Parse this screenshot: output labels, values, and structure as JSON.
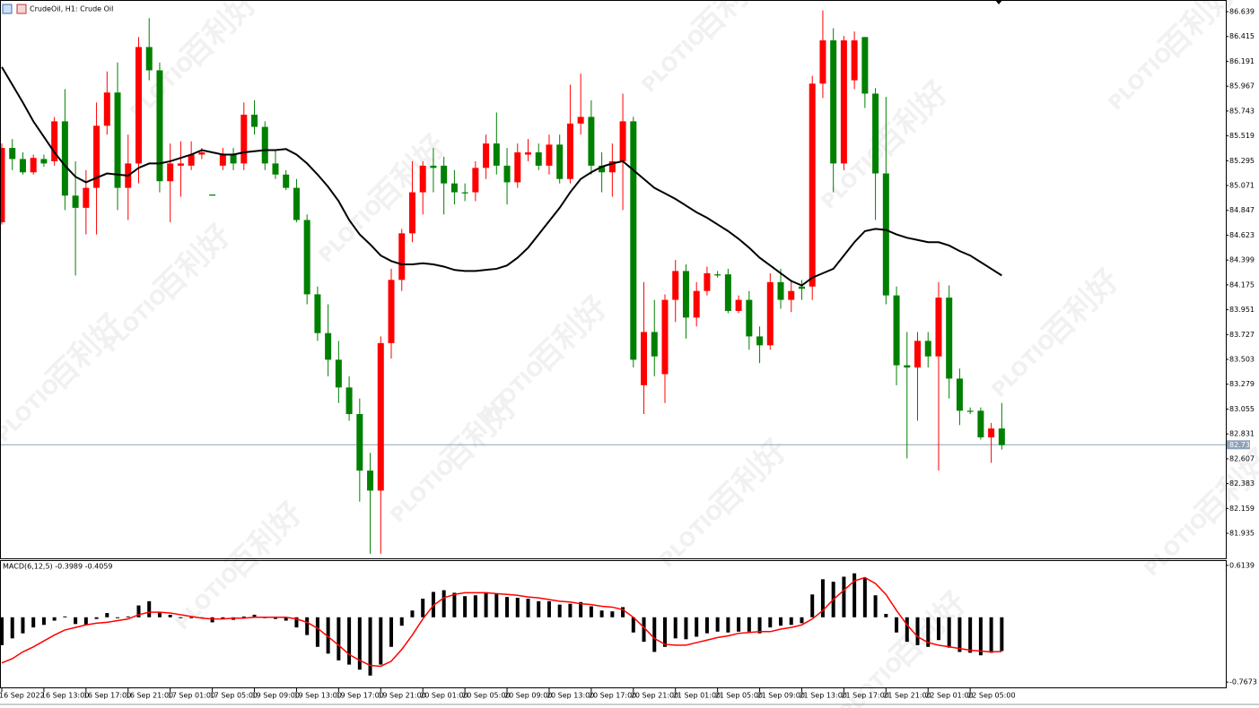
{
  "chart_data": [
    {
      "type": "candlestick",
      "title": "CrudeOil, H1:  Crude Oil",
      "categories": [
        "16 Sep 2022",
        null,
        null,
        null,
        "16 Sep 13:00",
        null,
        null,
        null,
        "16 Sep 17:00",
        null,
        null,
        null,
        "16 Sep 21:00",
        null,
        null,
        null,
        "17 Sep 01:00",
        null,
        null,
        null,
        "17 Sep 05:00",
        null,
        null,
        null,
        "19 Sep 09:00",
        null,
        null,
        null,
        "19 Sep 13:00",
        null,
        null,
        null,
        "19 Sep 17:00",
        null,
        null,
        null,
        "19 Sep 21:00",
        null,
        null,
        null,
        "20 Sep 01:00",
        null,
        null,
        null,
        "20 Sep 05:00",
        null,
        null,
        null,
        "20 Sep 09:00",
        null,
        null,
        null,
        "20 Sep 13:00",
        null,
        null,
        null,
        "20 Sep 17:00",
        null,
        null,
        null,
        "20 Sep 21:00",
        null,
        null,
        null,
        "21 Sep 01:00",
        null,
        null,
        null,
        "21 Sep 05:00",
        null,
        null,
        null,
        "21 Sep 09:00",
        null,
        null,
        null,
        "21 Sep 13:00",
        null,
        null,
        null,
        "21 Sep 17:00",
        null,
        null,
        null,
        "21 Sep 21:00",
        null,
        null,
        null,
        "22 Sep 01:00",
        null,
        null,
        null,
        "22 Sep 05:00",
        null,
        null,
        null
      ],
      "open": [
        84.74,
        85.41,
        85.31,
        85.19,
        85.31,
        85.29,
        85.65,
        84.98,
        84.87,
        85.05,
        85.61,
        85.91,
        85.05,
        85.27,
        86.32,
        86.11,
        85.11,
        85.25,
        85.25,
        85.35,
        84.99,
        85.25,
        85.35,
        85.27,
        85.71,
        85.6,
        85.27,
        85.17,
        85.05,
        84.76,
        84.09,
        83.74,
        83.5,
        83.25,
        83.01,
        82.5,
        82.32,
        83.65,
        84.22,
        84.64,
        85.01,
        85.25,
        85.25,
        85.09,
        85.01,
        85.01,
        85.23,
        85.45,
        85.25,
        85.1,
        85.35,
        85.37,
        85.25,
        85.44,
        85.13,
        85.63,
        85.69,
        85.25,
        85.19,
        85.29,
        85.65,
        83.27,
        83.75,
        83.37,
        84.04,
        84.3,
        83.88,
        84.12,
        84.27,
        84.27,
        83.94,
        84.04,
        83.71,
        83.63,
        84.2,
        84.04,
        84.16,
        84.16,
        85.99,
        86.38,
        85.27,
        86.02,
        86.41,
        85.9,
        85.18,
        84.08,
        83.45,
        83.43,
        83.67,
        83.53,
        84.06,
        83.33,
        83.04,
        83.04,
        82.8,
        82.88
      ],
      "high": [
        85.45,
        85.49,
        85.37,
        85.35,
        85.35,
        85.69,
        85.94,
        85.29,
        85.21,
        85.82,
        86.1,
        86.18,
        85.53,
        86.41,
        86.58,
        86.18,
        85.45,
        85.47,
        85.47,
        85.41,
        84.99,
        85.41,
        85.41,
        85.82,
        85.84,
        85.65,
        85.39,
        85.21,
        85.13,
        84.81,
        84.16,
        84.0,
        83.67,
        83.35,
        83.15,
        82.66,
        83.71,
        84.32,
        84.68,
        85.29,
        85.29,
        85.41,
        85.33,
        85.21,
        85.09,
        85.29,
        85.53,
        85.73,
        85.41,
        85.45,
        85.49,
        85.45,
        85.53,
        85.53,
        85.98,
        86.08,
        85.84,
        85.37,
        85.45,
        85.9,
        85.69,
        84.2,
        84.04,
        84.09,
        84.4,
        84.36,
        84.2,
        84.34,
        84.3,
        84.32,
        84.08,
        84.12,
        83.8,
        84.28,
        84.32,
        84.22,
        84.22,
        86.06,
        86.65,
        86.49,
        86.42,
        86.46,
        86.41,
        85.95,
        85.87,
        84.16,
        83.75,
        83.75,
        83.75,
        84.2,
        84.17,
        83.42,
        83.07,
        83.07,
        82.93,
        83.11
      ],
      "low": [
        84.72,
        85.21,
        85.17,
        85.17,
        85.24,
        85.25,
        84.85,
        84.26,
        84.63,
        84.63,
        85.53,
        84.85,
        84.76,
        85.09,
        86.02,
        85.01,
        84.74,
        84.97,
        85.21,
        85.31,
        84.98,
        85.21,
        85.21,
        85.21,
        85.53,
        85.21,
        85.13,
        85.03,
        84.74,
        84.0,
        83.67,
        83.35,
        83.11,
        82.95,
        82.22,
        81.75,
        81.75,
        83.51,
        84.12,
        84.56,
        84.81,
        85.01,
        84.81,
        84.9,
        84.93,
        84.93,
        85.13,
        85.17,
        84.9,
        85.05,
        85.29,
        85.21,
        85.17,
        85.09,
        85.09,
        85.53,
        85.17,
        85.01,
        84.97,
        84.85,
        83.43,
        83.01,
        83.35,
        83.11,
        83.84,
        83.69,
        83.8,
        84.08,
        84.24,
        83.92,
        83.92,
        83.59,
        83.47,
        83.59,
        83.96,
        83.93,
        84.04,
        84.04,
        85.86,
        85.01,
        85.21,
        85.94,
        85.77,
        84.76,
        84.0,
        83.27,
        82.61,
        82.95,
        83.43,
        82.5,
        83.15,
        82.91,
        83.01,
        82.78,
        82.57,
        82.69
      ],
      "close": [
        85.41,
        85.31,
        85.19,
        85.32,
        85.27,
        85.65,
        84.98,
        84.87,
        85.05,
        85.61,
        85.91,
        85.05,
        85.27,
        86.32,
        86.11,
        85.11,
        85.27,
        85.27,
        85.35,
        85.37,
        84.98,
        85.35,
        85.27,
        85.71,
        85.6,
        85.27,
        85.17,
        85.05,
        84.76,
        84.09,
        83.74,
        83.5,
        83.25,
        83.01,
        82.5,
        82.32,
        83.65,
        84.22,
        84.64,
        85.01,
        85.25,
        85.23,
        85.09,
        85.01,
        85.0,
        85.23,
        85.45,
        85.25,
        85.1,
        85.37,
        85.37,
        85.25,
        85.44,
        85.13,
        85.63,
        85.69,
        85.25,
        85.19,
        85.29,
        85.65,
        83.5,
        83.75,
        83.53,
        84.04,
        84.3,
        83.88,
        84.12,
        84.28,
        84.26,
        83.94,
        84.04,
        83.71,
        83.63,
        84.2,
        84.04,
        84.12,
        84.14,
        85.99,
        86.38,
        85.27,
        86.38,
        86.38,
        85.9,
        85.18,
        84.08,
        83.45,
        83.43,
        83.67,
        83.53,
        84.06,
        83.33,
        83.04,
        83.03,
        82.8,
        82.88,
        82.73
      ],
      "up_color": "#ff0000",
      "down_color": "#008000",
      "lines": [
        {
          "color": "#000000",
          "values": [
            86.14,
            85.98,
            85.82,
            85.65,
            85.51,
            85.37,
            85.25,
            85.15,
            85.1,
            85.14,
            85.18,
            85.17,
            85.16,
            85.23,
            85.27,
            85.27,
            85.29,
            85.32,
            85.35,
            85.39,
            85.37,
            85.35,
            85.35,
            85.37,
            85.38,
            85.39,
            85.39,
            85.4,
            85.35,
            85.27,
            85.17,
            85.06,
            84.93,
            84.76,
            84.63,
            84.54,
            84.44,
            84.39,
            84.36,
            84.36,
            84.37,
            84.36,
            84.34,
            84.31,
            84.3,
            84.3,
            84.31,
            84.32,
            84.35,
            84.42,
            84.51,
            84.63,
            84.75,
            84.87,
            85.01,
            85.13,
            85.19,
            85.24,
            85.27,
            85.29,
            85.21,
            85.13,
            85.05,
            85.0,
            84.95,
            84.89,
            84.83,
            84.78,
            84.72,
            84.66,
            84.59,
            84.51,
            84.42,
            84.35,
            84.28,
            84.21,
            84.17,
            84.24,
            84.28,
            84.32,
            84.44,
            84.56,
            84.66,
            84.68,
            84.67,
            84.63,
            84.6,
            84.58,
            84.56,
            84.56,
            84.53,
            84.48,
            84.44,
            84.38,
            84.32,
            84.26
          ]
        }
      ],
      "ylim": [
        81.717,
        86.728
      ],
      "yticks": [
        86.639,
        86.415,
        86.191,
        85.967,
        85.743,
        85.519,
        85.295,
        85.071,
        84.847,
        84.623,
        84.399,
        84.175,
        83.951,
        83.727,
        83.503,
        83.279,
        83.055,
        82.831,
        82.607,
        82.383,
        82.159,
        81.935
      ],
      "price_line": 82.733,
      "price_line_color": "#8ea2b8",
      "watermark": {
        "text": "百利好",
        "logo": "PLOTIO"
      }
    },
    {
      "type": "macd",
      "title": "MACD(6,12,5) -0.3989 -0.4059",
      "histogram": {
        "color": "#000000",
        "values": [
          -0.33,
          -0.25,
          -0.19,
          -0.12,
          -0.09,
          -0.04,
          0.01,
          -0.08,
          -0.09,
          -0.02,
          0.05,
          -0.01,
          0.01,
          0.14,
          0.19,
          0.06,
          0.03,
          -0.01,
          -0.01,
          -0.01,
          -0.06,
          -0.02,
          -0.03,
          0.01,
          0.03,
          -0.01,
          -0.02,
          -0.04,
          -0.12,
          -0.21,
          -0.35,
          -0.43,
          -0.51,
          -0.56,
          -0.62,
          -0.69,
          -0.56,
          -0.35,
          -0.1,
          0.08,
          0.22,
          0.3,
          0.32,
          0.29,
          0.25,
          0.26,
          0.29,
          0.28,
          0.24,
          0.23,
          0.22,
          0.19,
          0.19,
          0.15,
          0.16,
          0.18,
          0.13,
          0.08,
          0.07,
          0.12,
          -0.18,
          -0.29,
          -0.41,
          -0.35,
          -0.25,
          -0.26,
          -0.23,
          -0.19,
          -0.17,
          -0.18,
          -0.17,
          -0.17,
          -0.19,
          -0.12,
          -0.1,
          -0.09,
          -0.07,
          0.27,
          0.45,
          0.42,
          0.48,
          0.52,
          0.47,
          0.26,
          0.04,
          -0.18,
          -0.29,
          -0.33,
          -0.35,
          -0.27,
          -0.36,
          -0.41,
          -0.42,
          -0.45,
          -0.42,
          -0.3989
        ]
      },
      "signal": {
        "color": "#ff0000",
        "values": [
          -0.54,
          -0.49,
          -0.41,
          -0.35,
          -0.28,
          -0.21,
          -0.15,
          -0.12,
          -0.09,
          -0.07,
          -0.06,
          -0.04,
          -0.02,
          0.03,
          0.06,
          0.06,
          0.05,
          0.03,
          0.01,
          -0.01,
          -0.02,
          -0.02,
          -0.01,
          -0.01,
          0.0,
          0.0,
          0.0,
          0.0,
          -0.02,
          -0.06,
          -0.13,
          -0.23,
          -0.33,
          -0.44,
          -0.51,
          -0.57,
          -0.58,
          -0.52,
          -0.38,
          -0.21,
          -0.02,
          0.14,
          0.23,
          0.27,
          0.29,
          0.29,
          0.29,
          0.28,
          0.27,
          0.26,
          0.24,
          0.23,
          0.21,
          0.19,
          0.18,
          0.16,
          0.15,
          0.13,
          0.12,
          0.09,
          0.0,
          -0.12,
          -0.25,
          -0.32,
          -0.33,
          -0.33,
          -0.3,
          -0.27,
          -0.24,
          -0.22,
          -0.19,
          -0.18,
          -0.17,
          -0.17,
          -0.14,
          -0.12,
          -0.09,
          -0.02,
          0.08,
          0.21,
          0.32,
          0.43,
          0.47,
          0.4,
          0.27,
          0.08,
          -0.09,
          -0.23,
          -0.3,
          -0.33,
          -0.35,
          -0.37,
          -0.39,
          -0.4,
          -0.41,
          -0.4059
        ]
      },
      "ylim": [
        -0.819,
        0.655
      ],
      "yticks": [
        0.6139,
        -0.7673
      ]
    }
  ]
}
